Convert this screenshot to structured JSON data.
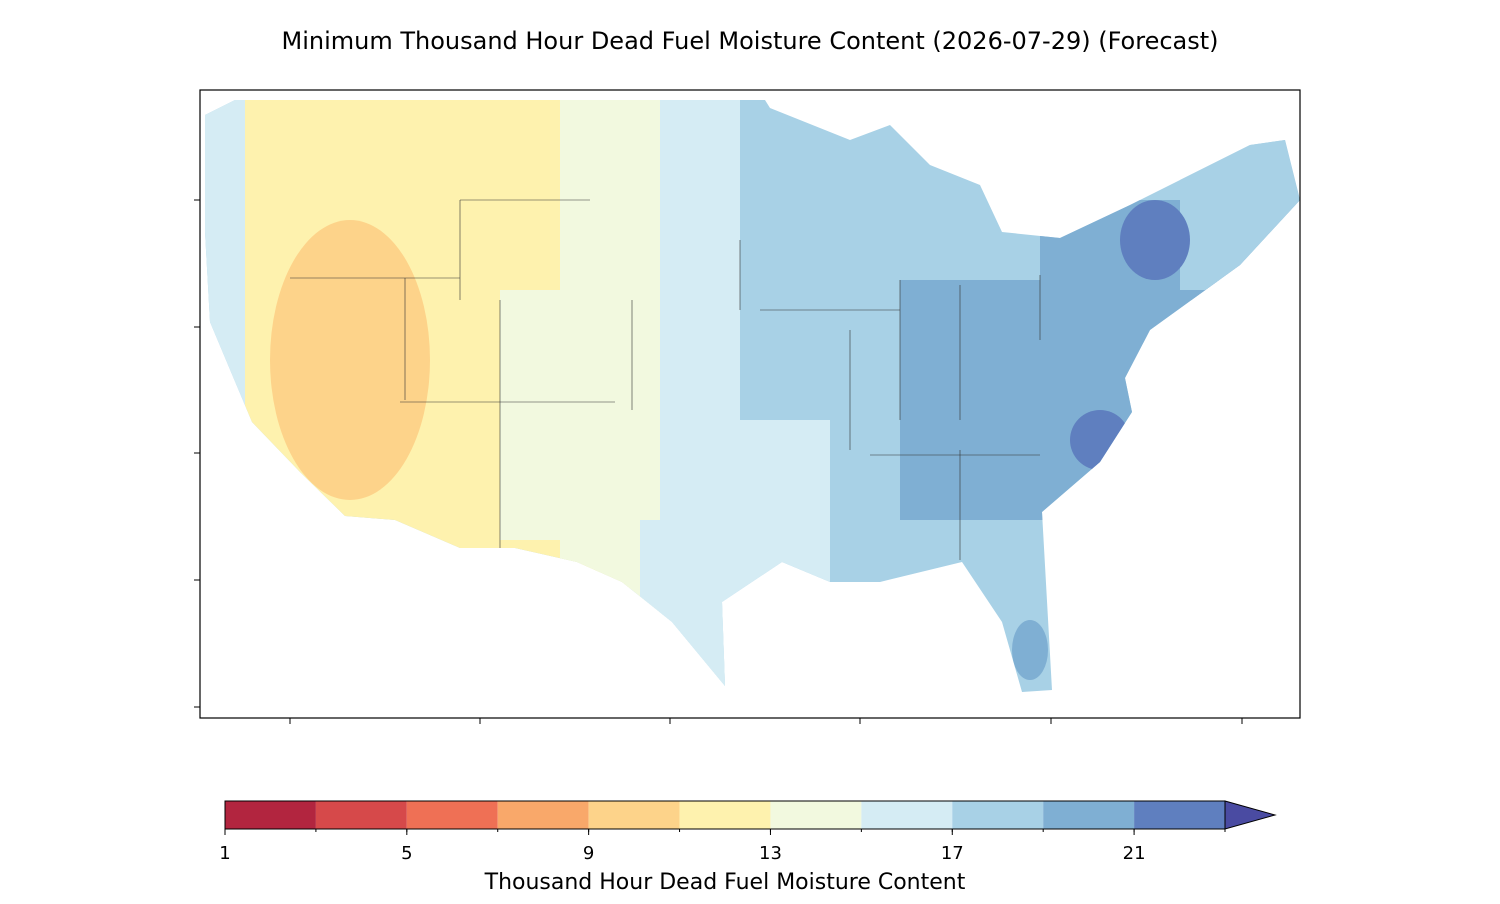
{
  "title": "Minimum Thousand Hour Dead Fuel Moisture Content (2026-07-29) (Forecast)",
  "colorbar": {
    "label": "Thousand Hour Dead Fuel Moisture Content",
    "levels": [
      1,
      3,
      5,
      7,
      9,
      11,
      13,
      15,
      17,
      19,
      21,
      23
    ],
    "ticks": [
      1,
      5,
      9,
      13,
      17,
      21
    ],
    "colors": [
      "#b2253f",
      "#d6494a",
      "#ef7055",
      "#f9a86a",
      "#fdd38a",
      "#fef2ae",
      "#f2f9df",
      "#d5ecf4",
      "#a8d1e6",
      "#7fafd3",
      "#5f7fbf"
    ],
    "extend_color": "#4a4ba2"
  }
}
